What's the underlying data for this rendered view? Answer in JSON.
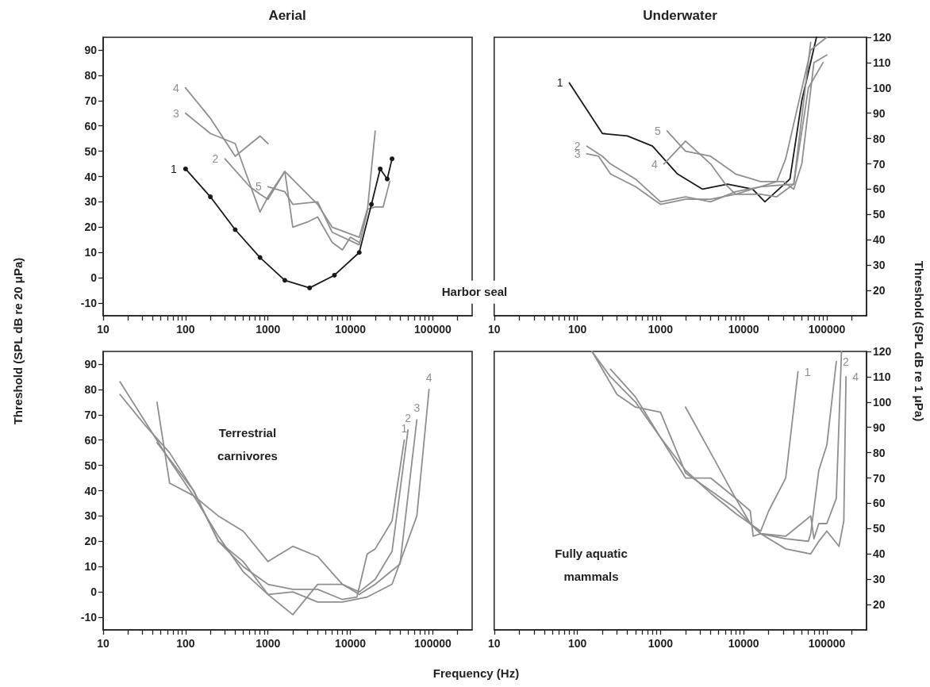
{
  "chart_data": [
    {
      "type": "line",
      "title": "Aerial",
      "ylabel": "Threshold (SPL dB re 20 μPa)",
      "annotations": [
        "Harbor seal"
      ],
      "log": "x",
      "xlim": [
        10,
        300000
      ],
      "ylim": [
        -15,
        95
      ],
      "xticks": [
        10,
        {
          "value": 20,
          "label": null
        },
        {
          "value": 30,
          "label": null
        },
        {
          "value": 40,
          "label": null
        },
        {
          "value": 50,
          "label": null
        },
        {
          "value": 60,
          "label": null
        },
        {
          "value": 70,
          "label": null
        },
        {
          "value": 80,
          "label": null
        },
        {
          "value": 90,
          "label": null
        },
        100,
        {
          "value": 200,
          "label": null
        },
        {
          "value": 300,
          "label": null
        },
        {
          "value": 400,
          "label": null
        },
        {
          "value": 500,
          "label": null
        },
        {
          "value": 600,
          "label": null
        },
        {
          "value": 700,
          "label": null
        },
        {
          "value": 800,
          "label": null
        },
        {
          "value": 900,
          "label": null
        },
        1000,
        {
          "value": 2000,
          "label": null
        },
        {
          "value": 3000,
          "label": null
        },
        {
          "value": 4000,
          "label": null
        },
        {
          "value": 5000,
          "label": null
        },
        {
          "value": 6000,
          "label": null
        },
        {
          "value": 7000,
          "label": null
        },
        {
          "value": 8000,
          "label": null
        },
        {
          "value": 9000,
          "label": null
        },
        10000,
        {
          "value": 20000,
          "label": null
        },
        {
          "value": 30000,
          "label": null
        },
        {
          "value": 40000,
          "label": null
        },
        {
          "value": 50000,
          "label": null
        },
        {
          "value": 60000,
          "label": null
        },
        {
          "value": 70000,
          "label": null
        },
        {
          "value": 80000,
          "label": null
        },
        {
          "value": 90000,
          "label": null
        },
        100000,
        {
          "value": 200000,
          "label": null
        }
      ],
      "yticks": [
        -10,
        0,
        10,
        20,
        30,
        40,
        50,
        60,
        70,
        80,
        90
      ],
      "marker": "none",
      "series": [
        {
          "name": "1",
          "color": "#1a1a1a",
          "marker": "circle",
          "x": [
            100,
            200,
            400,
            800,
            1600,
            3200,
            6400,
            12800,
            18000,
            23000,
            28000,
            32000
          ],
          "values": [
            43,
            32,
            19,
            8,
            -1,
            -4,
            1,
            10,
            29,
            43,
            39,
            47
          ]
        },
        {
          "name": "2",
          "color": "#8f8f8f",
          "x": [
            300,
            600,
            800,
            1000,
            1600,
            4000,
            6000,
            12800,
            16000,
            20000,
            25000,
            30000
          ],
          "values": [
            47,
            36,
            33,
            31,
            42,
            29,
            20,
            16,
            27,
            28,
            28,
            38
          ]
        },
        {
          "name": "3",
          "color": "#8f8f8f",
          "x": [
            100,
            200,
            400,
            800,
            1000,
            1600,
            2000,
            3000,
            4000,
            6000,
            8000,
            10000,
            12800
          ],
          "values": [
            65,
            57,
            53,
            26,
            32,
            42,
            20,
            22,
            24,
            14,
            11,
            16,
            14
          ]
        },
        {
          "name": "4",
          "color": "#8f8f8f",
          "x": [
            100,
            200,
            400,
            800,
            1000
          ],
          "values": [
            75,
            63,
            48,
            56,
            53
          ]
        },
        {
          "name": "5",
          "color": "#8f8f8f",
          "x": [
            1000,
            1600,
            2000,
            4000,
            6000,
            12800,
            16000,
            20000
          ],
          "values": [
            36,
            34,
            29,
            30,
            18,
            13,
            26,
            58
          ]
        }
      ]
    },
    {
      "type": "line",
      "title": "Underwater",
      "ylabel": "Threshold (SPL dB re 1 μPa)",
      "log": "x",
      "xlim": [
        10,
        300000
      ],
      "ylim": [
        10,
        120
      ],
      "xticks": [
        10,
        {
          "value": 20,
          "label": null
        },
        {
          "value": 30,
          "label": null
        },
        {
          "value": 40,
          "label": null
        },
        {
          "value": 50,
          "label": null
        },
        {
          "value": 60,
          "label": null
        },
        {
          "value": 70,
          "label": null
        },
        {
          "value": 80,
          "label": null
        },
        {
          "value": 90,
          "label": null
        },
        100,
        {
          "value": 200,
          "label": null
        },
        {
          "value": 300,
          "label": null
        },
        {
          "value": 400,
          "label": null
        },
        {
          "value": 500,
          "label": null
        },
        {
          "value": 600,
          "label": null
        },
        {
          "value": 700,
          "label": null
        },
        {
          "value": 800,
          "label": null
        },
        {
          "value": 900,
          "label": null
        },
        1000,
        {
          "value": 2000,
          "label": null
        },
        {
          "value": 3000,
          "label": null
        },
        {
          "value": 4000,
          "label": null
        },
        {
          "value": 5000,
          "label": null
        },
        {
          "value": 6000,
          "label": null
        },
        {
          "value": 7000,
          "label": null
        },
        {
          "value": 8000,
          "label": null
        },
        {
          "value": 9000,
          "label": null
        },
        10000,
        {
          "value": 20000,
          "label": null
        },
        {
          "value": 30000,
          "label": null
        },
        {
          "value": 40000,
          "label": null
        },
        {
          "value": 50000,
          "label": null
        },
        {
          "value": 60000,
          "label": null
        },
        {
          "value": 70000,
          "label": null
        },
        {
          "value": 80000,
          "label": null
        },
        {
          "value": 90000,
          "label": null
        },
        100000,
        {
          "value": 200000,
          "label": null
        }
      ],
      "yticks": [
        20,
        30,
        40,
        50,
        60,
        70,
        80,
        90,
        100,
        110,
        120
      ],
      "marker": "none",
      "series": [
        {
          "name": "1",
          "color": "#1a1a1a",
          "x": [
            80,
            200,
            400,
            800,
            1600,
            3200,
            6400,
            12800,
            18000,
            36000,
            50000,
            75000
          ],
          "values": [
            102,
            82,
            81,
            77,
            66,
            60,
            62,
            60,
            55,
            64,
            95,
            120
          ]
        },
        {
          "name": "2",
          "color": "#8f8f8f",
          "x": [
            130,
            200,
            250,
            500,
            1000,
            2000,
            4000,
            8000,
            16000,
            25000,
            32000,
            64000,
            100000
          ],
          "values": [
            77,
            73,
            70,
            64,
            55,
            57,
            55,
            59,
            61,
            63,
            72,
            115,
            120
          ]
        },
        {
          "name": "3",
          "color": "#8f8f8f",
          "x": [
            130,
            180,
            250,
            500,
            1000,
            2000,
            4000,
            8000,
            16000,
            40000,
            60000,
            90000
          ],
          "values": [
            74,
            73,
            66,
            61,
            54,
            56,
            56,
            58,
            61,
            62,
            100,
            110
          ]
        },
        {
          "name": "4",
          "color": "#8f8f8f",
          "x": [
            1100,
            2000,
            4000,
            6000,
            8000,
            16000,
            25000,
            40000,
            64000
          ],
          "values": [
            70,
            79,
            70,
            62,
            58,
            58,
            57,
            62,
            118
          ]
        },
        {
          "name": "5",
          "color": "#8f8f8f",
          "x": [
            1200,
            2000,
            4000,
            8000,
            16000,
            30000,
            40000,
            50000,
            70000,
            100000
          ],
          "values": [
            83,
            75,
            73,
            66,
            63,
            63,
            60,
            70,
            110,
            113
          ]
        }
      ]
    },
    {
      "type": "line",
      "xlabel": "Frequency (Hz)",
      "annotations": [
        "Terrestrial carnivores"
      ],
      "log": "x",
      "xlim": [
        10,
        300000
      ],
      "ylim": [
        -15,
        95
      ],
      "xticks": [
        10,
        {
          "value": 20,
          "label": null
        },
        {
          "value": 30,
          "label": null
        },
        {
          "value": 40,
          "label": null
        },
        {
          "value": 50,
          "label": null
        },
        {
          "value": 60,
          "label": null
        },
        {
          "value": 70,
          "label": null
        },
        {
          "value": 80,
          "label": null
        },
        {
          "value": 90,
          "label": null
        },
        100,
        {
          "value": 200,
          "label": null
        },
        {
          "value": 300,
          "label": null
        },
        {
          "value": 400,
          "label": null
        },
        {
          "value": 500,
          "label": null
        },
        {
          "value": 600,
          "label": null
        },
        {
          "value": 700,
          "label": null
        },
        {
          "value": 800,
          "label": null
        },
        {
          "value": 900,
          "label": null
        },
        1000,
        {
          "value": 2000,
          "label": null
        },
        {
          "value": 3000,
          "label": null
        },
        {
          "value": 4000,
          "label": null
        },
        {
          "value": 5000,
          "label": null
        },
        {
          "value": 6000,
          "label": null
        },
        {
          "value": 7000,
          "label": null
        },
        {
          "value": 8000,
          "label": null
        },
        {
          "value": 9000,
          "label": null
        },
        10000,
        {
          "value": 20000,
          "label": null
        },
        {
          "value": 30000,
          "label": null
        },
        {
          "value": 40000,
          "label": null
        },
        {
          "value": 50000,
          "label": null
        },
        {
          "value": 60000,
          "label": null
        },
        {
          "value": 70000,
          "label": null
        },
        {
          "value": 80000,
          "label": null
        },
        {
          "value": 90000,
          "label": null
        },
        100000,
        {
          "value": 200000,
          "label": null
        }
      ],
      "yticks": [
        -10,
        0,
        10,
        20,
        30,
        40,
        50,
        60,
        70,
        80,
        90
      ],
      "marker": "none",
      "series": [
        {
          "name": "1",
          "color": "#8f8f8f",
          "x": [
            16,
            32,
            64,
            125,
            250,
            500,
            1000,
            2000,
            4000,
            8000,
            12000,
            16000,
            20000,
            32000,
            45000
          ],
          "values": [
            78,
            66,
            55,
            40,
            20,
            10,
            3,
            1,
            1,
            -3,
            -2,
            15,
            17,
            28,
            60
          ]
        },
        {
          "name": "2",
          "color": "#8f8f8f",
          "x": [
            16,
            64,
            125,
            250,
            500,
            1000,
            2000,
            4000,
            8000,
            12800,
            20000,
            32000,
            50000
          ],
          "values": [
            83,
            52,
            38,
            22,
            8,
            -1,
            -9,
            3,
            3,
            0,
            5,
            16,
            64
          ]
        },
        {
          "name": "3",
          "color": "#8f8f8f",
          "x": [
            45,
            64,
            125,
            250,
            500,
            1000,
            2000,
            4000,
            8000,
            12800,
            20000,
            40000,
            64000
          ],
          "values": [
            75,
            43,
            38,
            30,
            24,
            12,
            18,
            14,
            3,
            -1,
            3,
            11,
            68
          ]
        },
        {
          "name": "4",
          "color": "#8f8f8f",
          "x": [
            45,
            125,
            250,
            500,
            1000,
            2000,
            4000,
            8000,
            16000,
            32000,
            64000,
            90000
          ],
          "values": [
            59,
            40,
            20,
            12,
            -1,
            0,
            -4,
            -4,
            -2,
            3,
            30,
            80
          ]
        }
      ]
    },
    {
      "type": "line",
      "annotations": [
        "Fully aquatic mammals"
      ],
      "log": "x",
      "xlim": [
        10,
        300000
      ],
      "ylim": [
        10,
        120
      ],
      "xticks": [
        10,
        {
          "value": 20,
          "label": null
        },
        {
          "value": 30,
          "label": null
        },
        {
          "value": 40,
          "label": null
        },
        {
          "value": 50,
          "label": null
        },
        {
          "value": 60,
          "label": null
        },
        {
          "value": 70,
          "label": null
        },
        {
          "value": 80,
          "label": null
        },
        {
          "value": 90,
          "label": null
        },
        100,
        {
          "value": 200,
          "label": null
        },
        {
          "value": 300,
          "label": null
        },
        {
          "value": 400,
          "label": null
        },
        {
          "value": 500,
          "label": null
        },
        {
          "value": 600,
          "label": null
        },
        {
          "value": 700,
          "label": null
        },
        {
          "value": 800,
          "label": null
        },
        {
          "value": 900,
          "label": null
        },
        1000,
        {
          "value": 2000,
          "label": null
        },
        {
          "value": 3000,
          "label": null
        },
        {
          "value": 4000,
          "label": null
        },
        {
          "value": 5000,
          "label": null
        },
        {
          "value": 6000,
          "label": null
        },
        {
          "value": 7000,
          "label": null
        },
        {
          "value": 8000,
          "label": null
        },
        {
          "value": 9000,
          "label": null
        },
        10000,
        {
          "value": 20000,
          "label": null
        },
        {
          "value": 30000,
          "label": null
        },
        {
          "value": 40000,
          "label": null
        },
        {
          "value": 50000,
          "label": null
        },
        {
          "value": 60000,
          "label": null
        },
        {
          "value": 70000,
          "label": null
        },
        {
          "value": 80000,
          "label": null
        },
        {
          "value": 90000,
          "label": null
        },
        100000,
        {
          "value": 200000,
          "label": null
        }
      ],
      "yticks": [
        20,
        30,
        40,
        50,
        60,
        70,
        80,
        90,
        100,
        110,
        120
      ],
      "marker": "none",
      "series": [
        {
          "name": "1",
          "color": "#8f8f8f",
          "x": [
            150,
            250,
            500,
            1000,
            2000,
            4000,
            8000,
            16000,
            20000,
            32000,
            45000
          ],
          "values": [
            120,
            110,
            100,
            86,
            73,
            64,
            56,
            49,
            57,
            70,
            112
          ]
        },
        {
          "name": "2",
          "color": "#8f8f8f",
          "x": [
            250,
            500,
            1000,
            2000,
            4000,
            8000,
            12000,
            13000,
            16000,
            32000,
            60000,
            64000,
            80000,
            100000,
            130000
          ],
          "values": [
            113,
            102,
            86,
            70,
            70,
            62,
            57,
            47,
            48,
            46,
            45,
            48,
            73,
            83,
            116
          ]
        },
        {
          "color": "#8f8f8f",
          "x": [
            2000,
            4000,
            8000,
            12000,
            16000,
            32000,
            64000,
            70000,
            80000,
            100000,
            130000,
            150000
          ],
          "values": [
            98,
            80,
            62,
            52,
            48,
            47,
            55,
            46,
            52,
            52,
            62,
            120
          ]
        },
        {
          "name": "4",
          "color": "#8f8f8f",
          "x": [
            150,
            300,
            500,
            1000,
            2000,
            4000,
            8000,
            16000,
            32000,
            64000,
            80000,
            100000,
            140000,
            160000,
            170000
          ],
          "values": [
            120,
            103,
            98,
            96,
            72,
            65,
            58,
            48,
            42,
            40,
            45,
            49,
            43,
            53,
            110
          ]
        }
      ]
    }
  ]
}
